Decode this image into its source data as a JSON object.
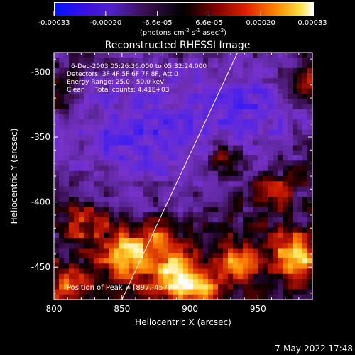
{
  "colorbar": {
    "ticks": [
      "-0.00033",
      "-0.00020",
      "-6.6e-05",
      "6.6e-05",
      "0.00020",
      "0.00033"
    ],
    "unit_label": "(photons cm",
    "unit_exp1": "-2",
    "unit_mid": " s",
    "unit_exp2": "-1",
    "unit_end": " asec",
    "unit_exp3": "-2",
    "unit_close": ")"
  },
  "footer": {
    "date": "7-May-2022 17:48"
  },
  "chart_data": {
    "type": "heatmap",
    "title": "Reconstructed RHESSI Image",
    "xlabel": "Heliocentric X (arcsec)",
    "ylabel": "Heliocentric Y (arcsec)",
    "xlim": [
      800,
      990
    ],
    "ylim": [
      -475,
      -285
    ],
    "xticks": [
      "800",
      "850",
      "900",
      "950"
    ],
    "xtick_values": [
      800,
      850,
      900,
      950
    ],
    "yticks": [
      "-300",
      "-350",
      "-400",
      "-450"
    ],
    "ytick_values": [
      -300,
      -350,
      -400,
      -450
    ],
    "value_range": [
      -0.00033,
      0.00033
    ],
    "colormap": [
      "#1e14ff",
      "#5a20e0",
      "#7a2cc0",
      "#330a3a",
      "#000000",
      "#5a0000",
      "#d21a00",
      "#ff8a00",
      "#ffe040",
      "#ffffff"
    ],
    "annotations": [
      "6-Dec-2003 05:26:36.000 to 05:32:24.000",
      "Detectors: 3F 4F 5F 6F 7F 8F, Att 0",
      "Energy Range: 25.0 - 50.0 keV",
      "Clean     Total counts: 4.41E+03"
    ],
    "peak_label": "Position of Peak = [897,-457]",
    "limb_line": [
      [
        850,
        -475
      ],
      [
        935,
        -285
      ]
    ]
  }
}
